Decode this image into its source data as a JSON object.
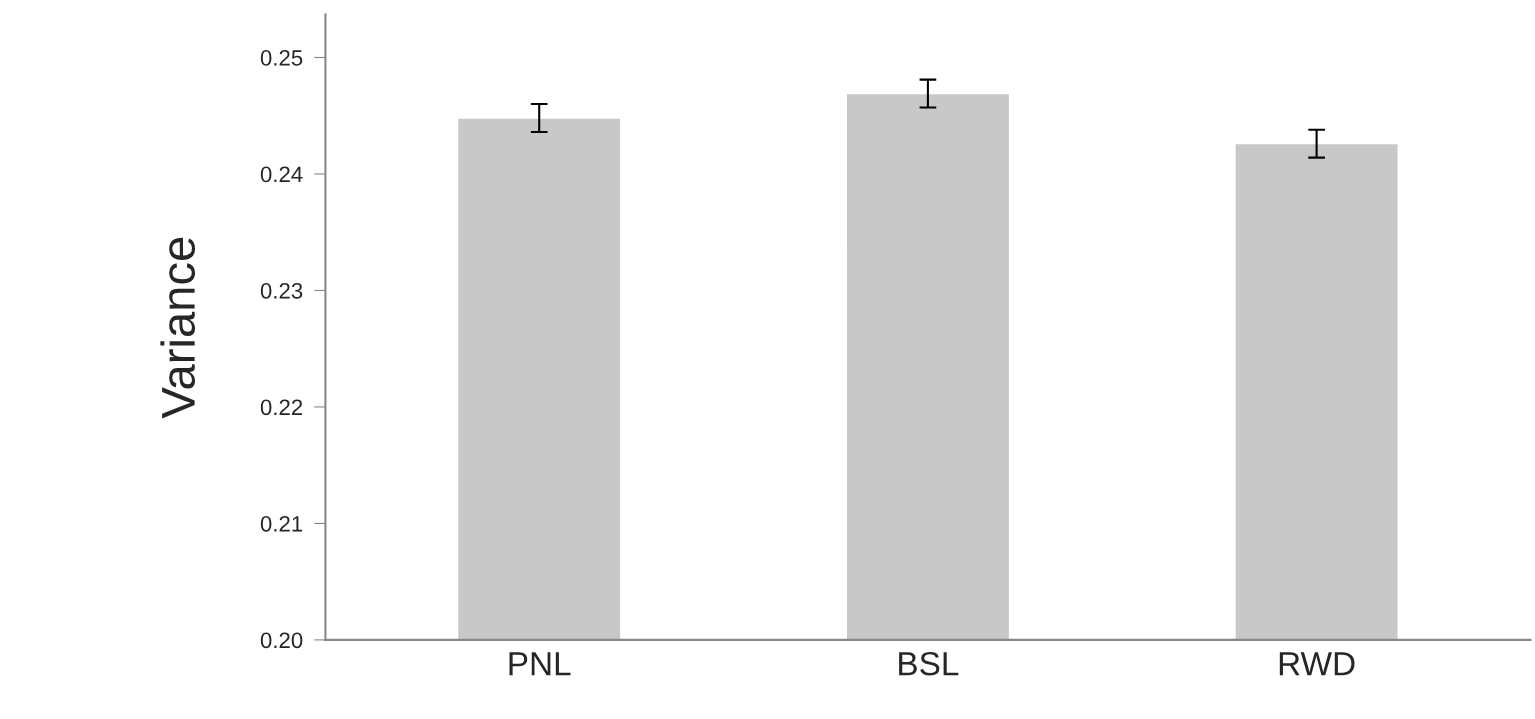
{
  "chart_data": {
    "type": "bar",
    "ylabel": "Variance",
    "categories": [
      "PNL",
      "BSL",
      "RWD"
    ],
    "values": [
      0.2448,
      0.2469,
      0.2426
    ],
    "errors": [
      0.0012,
      0.0012,
      0.0012
    ],
    "color": "#c8c8c8",
    "ylim": [
      0.2,
      0.2537
    ],
    "yticks": [
      {
        "value": 0.2,
        "label": "0.20"
      },
      0.21,
      0.22,
      0.23,
      0.24,
      0.25
    ],
    "grid": false
  }
}
